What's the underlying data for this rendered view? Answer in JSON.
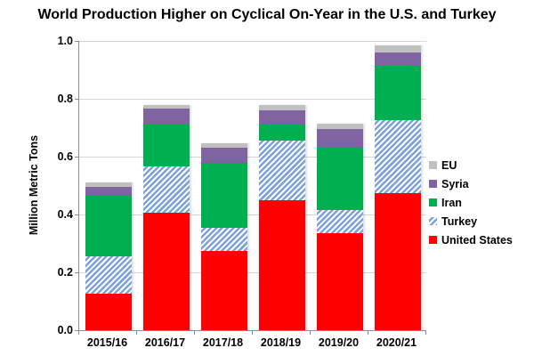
{
  "chart_data": {
    "type": "bar",
    "stacked": true,
    "title": "World Production Higher on Cyclical On-Year in the U.S. and Turkey",
    "xlabel": "",
    "ylabel": "Million Metric Tons",
    "ylim": [
      0,
      1.0
    ],
    "y_tick_labels": [
      "0.0",
      "0.2",
      "0.4",
      "0.6",
      "0.8",
      "1.0"
    ],
    "y_tick_values": [
      0,
      0.2,
      0.4,
      0.6,
      0.8,
      1.0
    ],
    "grid": true,
    "legend_position": "right",
    "categories": [
      "2015/16",
      "2016/17",
      "2017/18",
      "2018/19",
      "2019/20",
      "2020/21"
    ],
    "series": [
      {
        "name": "United States",
        "color": "#FF0000",
        "pattern": "solid",
        "values": [
          0.125,
          0.405,
          0.275,
          0.45,
          0.335,
          0.475
        ]
      },
      {
        "name": "Turkey",
        "color": "#7CA1DC",
        "pattern": "diagonal-stripes",
        "pattern_bg": "#FFFFFF",
        "values": [
          0.13,
          0.16,
          0.08,
          0.205,
          0.08,
          0.25
        ]
      },
      {
        "name": "Iran",
        "color": "#00B050",
        "pattern": "solid",
        "values": [
          0.21,
          0.15,
          0.225,
          0.055,
          0.215,
          0.19
        ]
      },
      {
        "name": "Syria",
        "color": "#8064A2",
        "pattern": "solid",
        "values": [
          0.03,
          0.05,
          0.05,
          0.05,
          0.065,
          0.045
        ]
      },
      {
        "name": "EU",
        "color": "#C0C0C0",
        "pattern": "solid",
        "values": [
          0.015,
          0.015,
          0.015,
          0.017,
          0.02,
          0.025
        ]
      }
    ],
    "legend_entries_top_to_bottom": [
      "EU",
      "Syria",
      "Iran",
      "Turkey",
      "United States"
    ]
  },
  "colors": {
    "background": "#FFFFFF",
    "axis": "#8F8F8F",
    "gridline": "#D6D6D6",
    "text": "#000000"
  }
}
